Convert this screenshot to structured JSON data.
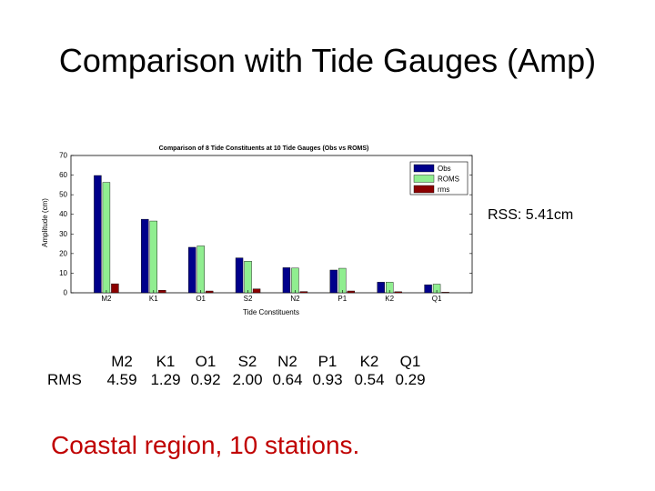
{
  "slide": {
    "title": "Comparison with Tide Gauges (Amp)",
    "rss_text": "RSS: 5.41cm",
    "rms_row_label": "RMS",
    "footer_text": "Coastal region,  10 stations."
  },
  "rms_table": {
    "constituents": [
      "M2",
      "K1",
      "O1",
      "S2",
      "N2",
      "P1",
      "K2",
      "Q1"
    ],
    "values": [
      "4.59",
      "1.29",
      "0.92",
      "2.00",
      "0.64",
      "0.93",
      "0.54",
      "0.29"
    ]
  },
  "chart_data": {
    "type": "bar",
    "title": "Comparison of 8 Tide Constituents at 10 Tide Gauges (Obs vs ROMS)",
    "xlabel": "Tide Constituents",
    "ylabel": "Amplitude (cm)",
    "ylim": [
      0,
      70
    ],
    "yticks": [
      0,
      10,
      20,
      30,
      40,
      50,
      60,
      70
    ],
    "categories": [
      "M2",
      "K1",
      "O1",
      "S2",
      "N2",
      "P1",
      "K2",
      "Q1"
    ],
    "grid": false,
    "legend_position": "top-right",
    "series": [
      {
        "name": "Obs",
        "color": "#00008b",
        "values": [
          59.8,
          37.5,
          23.2,
          17.8,
          12.8,
          11.6,
          5.4,
          4.1
        ]
      },
      {
        "name": "ROMS",
        "color": "#90ee90",
        "values": [
          56.3,
          36.6,
          23.9,
          16.1,
          12.6,
          12.5,
          5.4,
          4.4
        ]
      },
      {
        "name": "rms",
        "color": "#8b0000",
        "values": [
          4.59,
          1.29,
          0.92,
          2.0,
          0.64,
          0.93,
          0.54,
          0.29
        ]
      }
    ]
  }
}
